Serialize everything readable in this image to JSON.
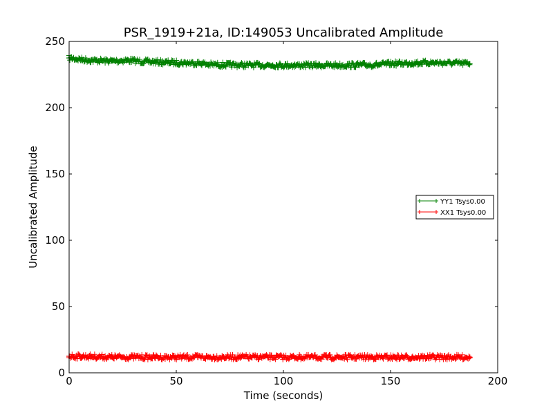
{
  "chart_data": {
    "type": "line",
    "title": "PSR_1919+21a, ID:149053 Uncalibrated Amplitude",
    "xlabel": "Time (seconds)",
    "ylabel": "Uncalibrated Amplitude",
    "xlim": [
      0,
      200
    ],
    "ylim": [
      0,
      250
    ],
    "xticks": [
      0,
      50,
      100,
      150,
      200
    ],
    "yticks": [
      0,
      50,
      100,
      150,
      200,
      250
    ],
    "grid": false,
    "legend_position": "right",
    "series": [
      {
        "name": "YY1 Tsys0.00",
        "color": "#008000",
        "marker": "+",
        "x": [
          0,
          5,
          10,
          20,
          27,
          35,
          45,
          55,
          62,
          65,
          75,
          85,
          95,
          105,
          115,
          125,
          135,
          145,
          150,
          160,
          170,
          180,
          187
        ],
        "y": [
          237.5,
          236.5,
          235.7,
          235.2,
          235.8,
          234.8,
          234.2,
          233.8,
          233.5,
          232.5,
          232.3,
          232.1,
          232.1,
          232.0,
          232.0,
          232.0,
          232.2,
          232.4,
          233.2,
          233.7,
          234.0,
          233.6,
          233.3
        ]
      },
      {
        "name": "XX1 Tsys0.00",
        "color": "#ff0000",
        "marker": "+",
        "x": [
          0,
          5,
          10,
          20,
          40,
          60,
          80,
          100,
          120,
          140,
          160,
          180,
          187
        ],
        "y": [
          12.5,
          12.4,
          12.3,
          11.9,
          11.8,
          11.8,
          11.8,
          11.8,
          11.8,
          11.8,
          11.8,
          11.8,
          11.8
        ]
      }
    ]
  }
}
